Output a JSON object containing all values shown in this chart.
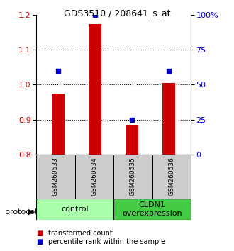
{
  "title": "GDS3510 / 208641_s_at",
  "samples": [
    "GSM260533",
    "GSM260534",
    "GSM260535",
    "GSM260536"
  ],
  "bar_values": [
    0.975,
    1.175,
    0.885,
    1.005
  ],
  "percentile_values": [
    60,
    100,
    25,
    60
  ],
  "bar_color": "#cc0000",
  "dot_color": "#0000cc",
  "ylim_left": [
    0.8,
    1.2
  ],
  "ylim_right": [
    0,
    100
  ],
  "yticks_left": [
    0.8,
    0.9,
    1.0,
    1.1,
    1.2
  ],
  "yticks_right": [
    0,
    25,
    50,
    75,
    100
  ],
  "ytick_labels_right": [
    "0",
    "25",
    "50",
    "75",
    "100%"
  ],
  "gridlines": [
    0.9,
    1.0,
    1.1
  ],
  "groups": [
    {
      "label": "control",
      "color": "#aaffaa"
    },
    {
      "label": "CLDN1\noverexpression",
      "color": "#44cc44"
    }
  ],
  "protocol_label": "protocol",
  "legend": [
    {
      "color": "#cc0000",
      "label": "transformed count"
    },
    {
      "color": "#0000cc",
      "label": "percentile rank within the sample"
    }
  ],
  "bar_width": 0.35,
  "sample_box_color": "#cccccc",
  "axis_color_left": "#cc0000",
  "axis_color_right": "#0000cc"
}
